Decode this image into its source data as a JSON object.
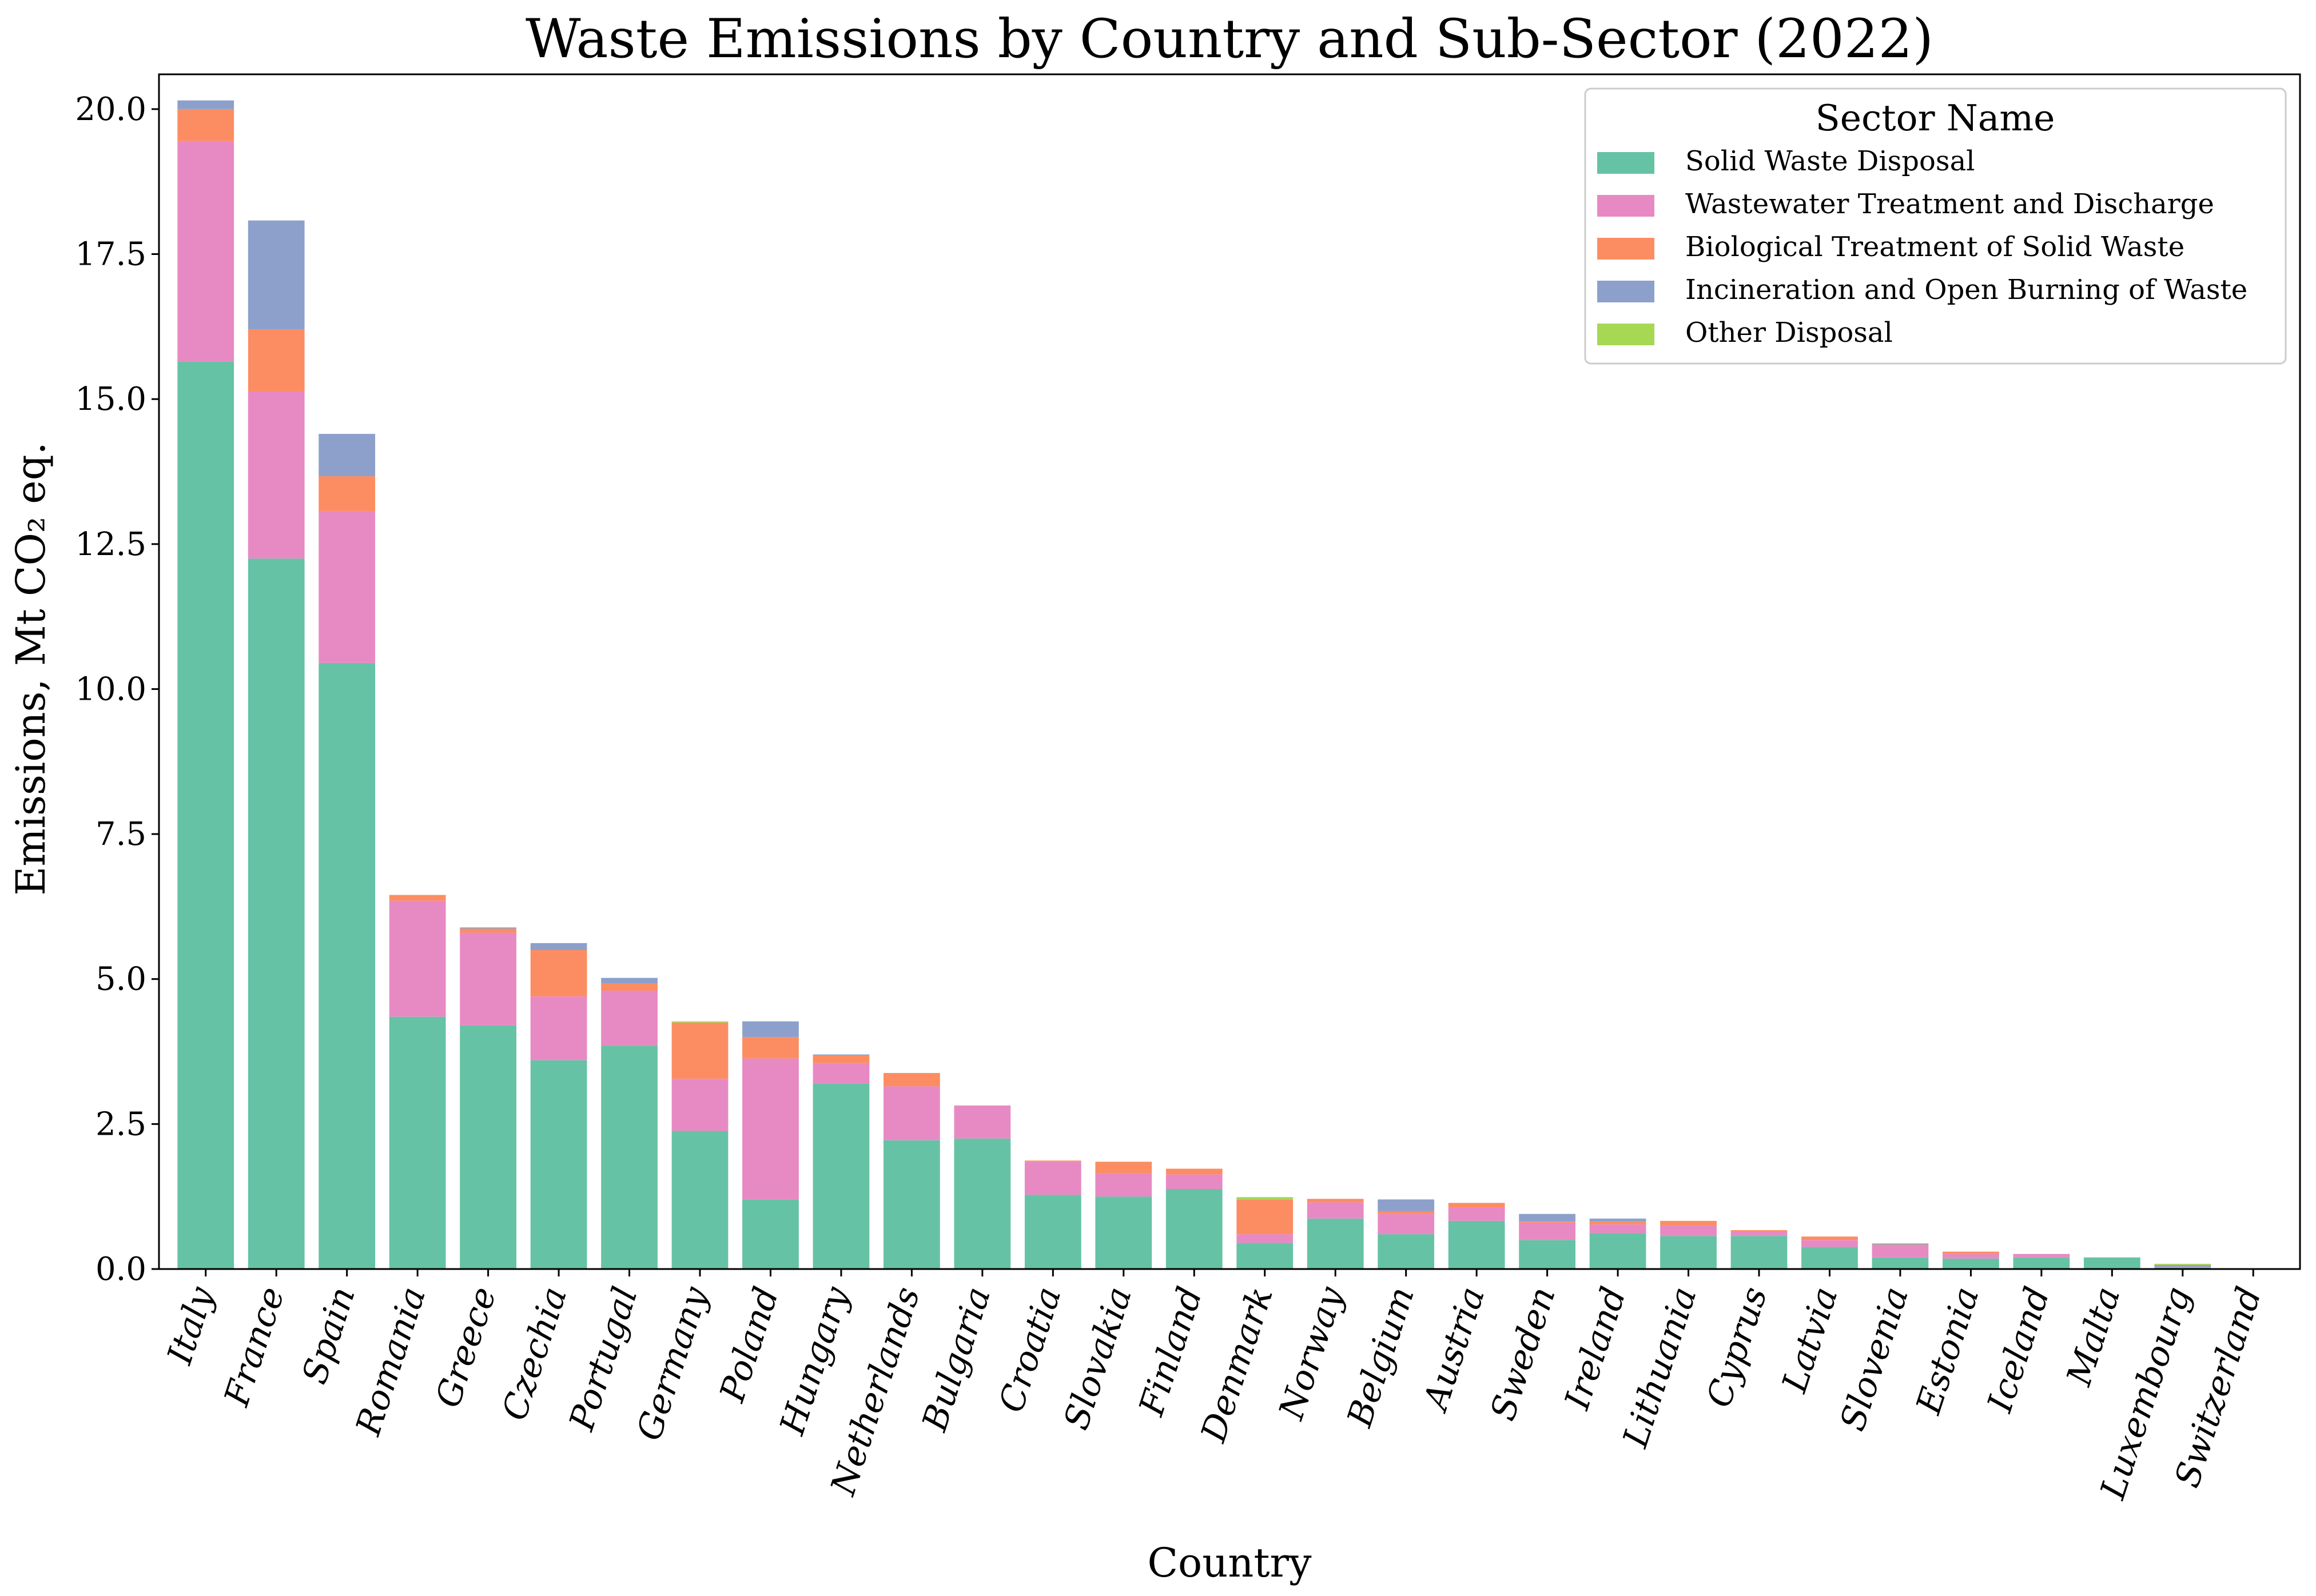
{
  "chart_data": {
    "type": "bar",
    "stacked": true,
    "title": "Waste Emissions by Country and Sub-Sector (2022)",
    "xlabel": "Country",
    "ylabel": "Emissions, Mt CO₂ eq.",
    "ylim": [
      0,
      20.6
    ],
    "yticks": [
      "0.0",
      "2.5",
      "5.0",
      "7.5",
      "10.0",
      "12.5",
      "15.0",
      "17.5",
      "20.0"
    ],
    "grid": false,
    "legend_title": "Sector Name",
    "legend_position": "top-right",
    "categories": [
      "Italy",
      "France",
      "Spain",
      "Romania",
      "Greece",
      "Czechia",
      "Portugal",
      "Germany",
      "Poland",
      "Hungary",
      "Netherlands",
      "Bulgaria",
      "Croatia",
      "Slovakia",
      "Finland",
      "Denmark",
      "Norway",
      "Belgium",
      "Austria",
      "Sweden",
      "Ireland",
      "Lithuania",
      "Cyprus",
      "Latvia",
      "Slovenia",
      "Estonia",
      "Iceland",
      "Malta",
      "Luxembourg",
      "Switzerland"
    ],
    "series": [
      {
        "name": "Solid Waste Disposal",
        "color": "#66c2a5",
        "values": [
          15.65,
          12.25,
          10.45,
          4.35,
          4.2,
          3.6,
          3.85,
          2.38,
          1.2,
          3.2,
          2.22,
          2.25,
          1.28,
          1.25,
          1.38,
          0.45,
          0.87,
          0.6,
          0.83,
          0.5,
          0.62,
          0.57,
          0.57,
          0.38,
          0.2,
          0.18,
          0.2,
          0.2,
          0.02,
          0.0
        ]
      },
      {
        "name": "Wastewater Treatment and Discharge",
        "color": "#e78ac3",
        "values": [
          3.8,
          2.88,
          2.62,
          2.0,
          1.6,
          1.1,
          0.95,
          0.9,
          2.43,
          0.35,
          0.93,
          0.57,
          0.57,
          0.4,
          0.25,
          0.15,
          0.28,
          0.35,
          0.23,
          0.3,
          0.15,
          0.18,
          0.08,
          0.12,
          0.2,
          0.08,
          0.06,
          0.0,
          0.02,
          0.0
        ]
      },
      {
        "name": "Biological Treatment of Solid Waste",
        "color": "#fc8d62",
        "values": [
          0.55,
          1.07,
          0.6,
          0.1,
          0.07,
          0.8,
          0.12,
          0.97,
          0.37,
          0.13,
          0.23,
          0.0,
          0.02,
          0.2,
          0.1,
          0.6,
          0.06,
          0.05,
          0.08,
          0.02,
          0.05,
          0.08,
          0.02,
          0.06,
          0.02,
          0.04,
          0.0,
          0.0,
          0.0,
          0.0
        ]
      },
      {
        "name": "Incineration and Open Burning of Waste",
        "color": "#8da0cb",
        "values": [
          0.15,
          1.88,
          0.73,
          0.0,
          0.02,
          0.12,
          0.1,
          0.0,
          0.27,
          0.02,
          0.0,
          0.0,
          0.0,
          0.0,
          0.0,
          0.0,
          0.0,
          0.2,
          0.0,
          0.13,
          0.05,
          0.0,
          0.0,
          0.0,
          0.02,
          0.0,
          0.0,
          0.0,
          0.03,
          0.0
        ]
      },
      {
        "name": "Other Disposal",
        "color": "#a6d854",
        "values": [
          0.0,
          0.0,
          0.0,
          0.0,
          0.0,
          0.0,
          0.0,
          0.02,
          0.0,
          0.0,
          0.0,
          0.0,
          0.0,
          0.0,
          0.0,
          0.04,
          0.0,
          0.0,
          0.0,
          0.0,
          0.0,
          0.0,
          0.0,
          0.0,
          0.0,
          0.0,
          0.0,
          0.0,
          0.02,
          0.0
        ]
      }
    ]
  }
}
